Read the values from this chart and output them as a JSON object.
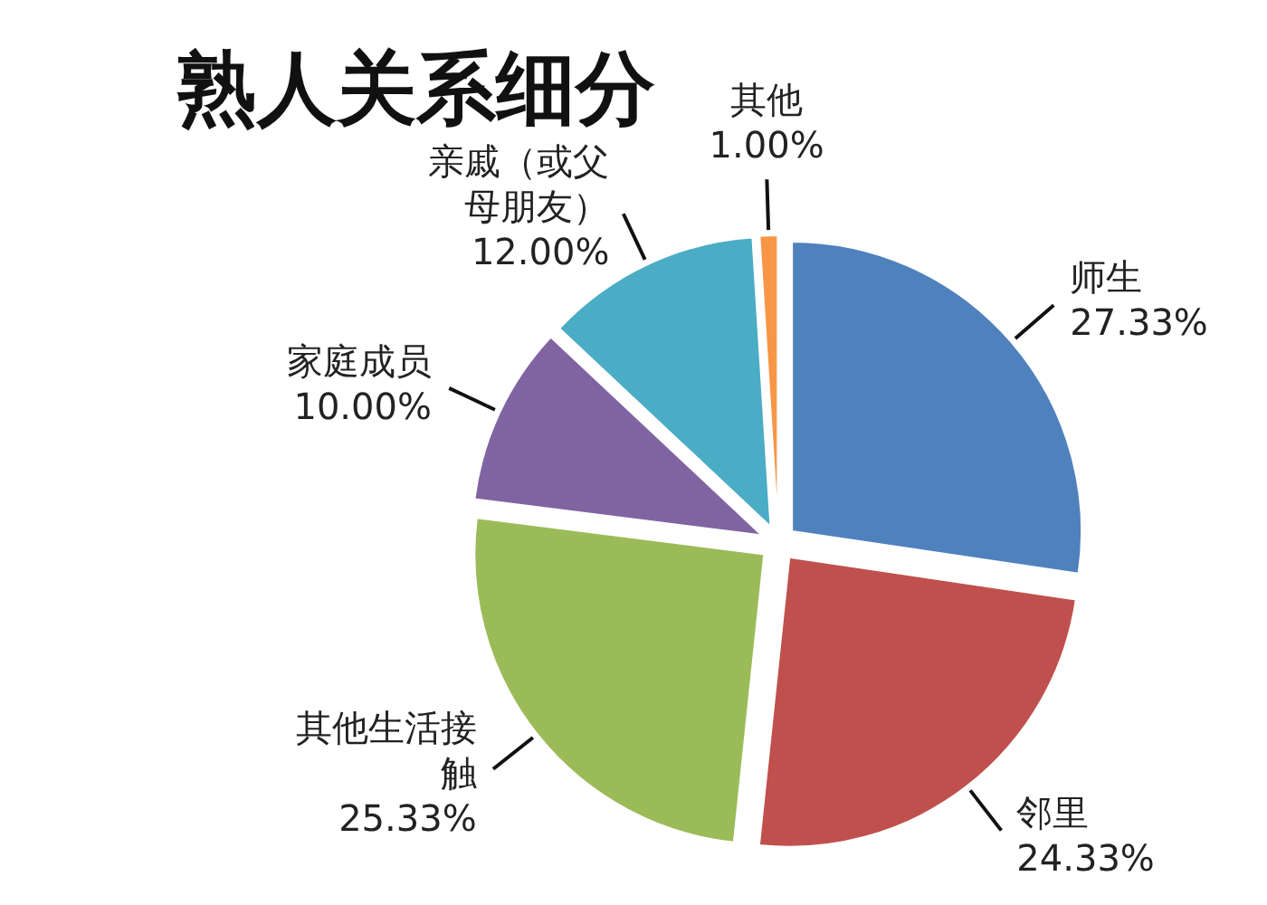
{
  "chart_data": {
    "type": "pie",
    "title": "熟人关系细分",
    "categories": [
      "师生",
      "邻里",
      "其他生活接触",
      "家庭成员",
      "亲戚（或父母朋友）",
      "其他"
    ],
    "values": [
      27.33,
      24.33,
      25.33,
      10.0,
      12.0,
      1.0
    ],
    "colors": [
      "#4f81bd",
      "#c0504d",
      "#9bbb59",
      "#8064a2",
      "#4bacc6",
      "#f79646"
    ],
    "value_labels": [
      "27.33%",
      "24.33%",
      "25.33%",
      "10.00%",
      "12.00%",
      "1.00%"
    ]
  }
}
